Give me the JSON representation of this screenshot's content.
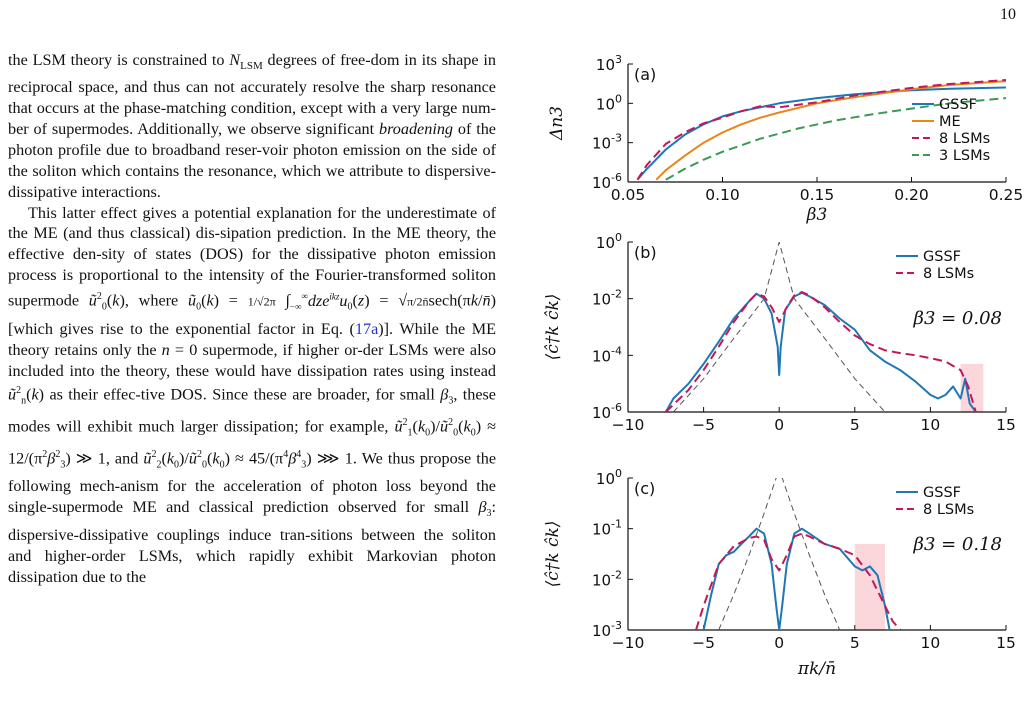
{
  "page_number": "10",
  "paragraphs": [
    "the LSM theory is constrained to N_LSM degrees of freedom in its shape in reciprocal space, and thus can not accurately resolve the sharp resonance that occurs at the phase-matching condition, except with a very large number of supermodes. Additionally, we observe significant broadening of the photon profile due to broadband reservoir photon emission on the side of the soliton which contains the resonance, which we attribute to dispersive-dissipative interactions.",
    "This latter effect gives a potential explanation for the underestimate of the ME (and thus classical) dissipation prediction. In the ME theory, the effective density of states (DOS) for the dissipative photon emission process is proportional to the intensity of the Fourier-transformed soliton supermode ũ₀²(k), where ũ₀(k) = (1/√2π)∫dz e^{ikz}u₀(z) = √(π/2n̄) sech(πk/n̄) [which gives rise to the exponential factor in Eq. (17a)]. While the ME theory retains only the n = 0 supermode, if higher order LSMs were also included into the theory, these would have dissipation rates using instead ũₙ²(k) as their effective DOS. Since these are broader, for small β₃, these modes will exhibit much larger dissipation; for example, ũ₁²(k₀)/ũ₀²(k₀) ≈ 12/(π²β₃²) ≫ 1, and ũ₂²(k₀)/ũ₀²(k₀) ≈ 45/(π⁴β₃⁴) ⋙ 1. We thus propose the following mechanism for the acceleration of photon loss beyond the single-supermode ME and classical prediction observed for small β₃: dispersive-dissipative couplings induce transitions between the soliton and higher-order LSMs, which rapidly exhibit Markovian photon dissipation due to the"
  ],
  "text": {
    "p1a": "the LSM theory is constrained to ",
    "p1b": " degrees of free-dom in its shape in reciprocal space, and thus can not accurately resolve the sharp resonance that occurs at the phase-matching condition, except with a very large num-ber of supermodes. Additionally, we observe significant ",
    "p1c": "broadening",
    "p1d": " of the photon profile due to broadband reser-voir photon emission on the side of the soliton which contains the resonance, which we attribute to dispersive-dissipative interactions.",
    "p2a": "This latter effect gives a potential explanation for the underestimate of the ME (and thus classical) dis-sipation prediction. In the ME theory, the effective den-sity of states (DOS) for the dissipative photon emission process is proportional to the intensity of the Fourier-transformed soliton supermode ",
    "p2b": ", where ",
    "p2c": " [which gives rise to the exponential factor in Eq. (",
    "p2ref": "17a",
    "p2d": ")]. While the ME theory retains only the ",
    "p2e": " supermode, if higher or-der LSMs were also included into the theory, these would have dissipation rates using instead ",
    "p2f": " as their effec-tive DOS. Since these are broader, for small ",
    "p2g": ", these modes will exhibit much larger dissipation; for example, ",
    "p2h": ", and ",
    "p2i": ". We thus propose the following mech-anism for the acceleration of photon loss beyond the single-supermode ME and classical prediction observed for small ",
    "p2j": ": dispersive-dissipative couplings induce tran-sitions between the soliton and higher-order LSMs, which rapidly exhibit Markovian photon dissipation due to the"
  },
  "colors": {
    "gssf": "#1f77b4",
    "me": "#e8851c",
    "lsm8": "#c2185b",
    "lsm3": "#3a9a55",
    "envelope": "#555555",
    "highlight": "#f9c9cf",
    "link": "#2233cc"
  },
  "chart_data": [
    {
      "panel": "(a)",
      "type": "line",
      "xlabel": "β3",
      "ylabel": "Δn3",
      "xlim": [
        0.05,
        0.25
      ],
      "xticks": [
        "0.05",
        "0.10",
        "0.15",
        "0.20",
        "0.25"
      ],
      "yscale": "log",
      "ylim": [
        1e-06,
        1000.0
      ],
      "yticks": [
        "10^-6",
        "10^-3",
        "10^0",
        "10^3"
      ],
      "legend_position": "bottom-right",
      "series": [
        {
          "name": "GSSF",
          "style": "solid",
          "x": [
            0.055,
            0.06,
            0.07,
            0.08,
            0.09,
            0.1,
            0.11,
            0.12,
            0.13,
            0.15,
            0.17,
            0.2,
            0.22,
            0.25
          ],
          "y": [
            1.5e-06,
            1e-05,
            0.0003,
            0.004,
            0.025,
            0.1,
            0.25,
            0.5,
            1.0,
            2.5,
            5,
            10,
            13,
            16
          ]
        },
        {
          "name": "ME",
          "style": "solid",
          "x": [
            0.065,
            0.07,
            0.08,
            0.09,
            0.1,
            0.11,
            0.12,
            0.13,
            0.15,
            0.17,
            0.2,
            0.22,
            0.25
          ],
          "y": [
            1.5e-06,
            8e-06,
            0.0001,
            0.001,
            0.006,
            0.025,
            0.08,
            0.2,
            1,
            3,
            12,
            25,
            50
          ]
        },
        {
          "name": "8 LSMs",
          "style": "dashed",
          "x": [
            0.055,
            0.06,
            0.07,
            0.08,
            0.09,
            0.1,
            0.11,
            0.12,
            0.13,
            0.15,
            0.17,
            0.2,
            0.22,
            0.25
          ],
          "y": [
            1.5e-06,
            2e-05,
            0.0008,
            0.006,
            0.03,
            0.08,
            0.25,
            0.6,
            0.5,
            1.2,
            4,
            15,
            30,
            60
          ]
        },
        {
          "name": "3 LSMs",
          "style": "dashed",
          "x": [
            0.07,
            0.08,
            0.09,
            0.1,
            0.12,
            0.14,
            0.16,
            0.18,
            0.2,
            0.22,
            0.25
          ],
          "y": [
            1.5e-06,
            1e-05,
            5e-05,
            0.0002,
            0.002,
            0.012,
            0.05,
            0.15,
            0.4,
            1,
            2.5
          ]
        }
      ]
    },
    {
      "panel": "(b)",
      "type": "line",
      "xlabel": "",
      "ylabel": "⟨ĉ†k ĉk⟩",
      "annotation": "β3 = 0.08",
      "xlim": [
        -10,
        15
      ],
      "xticks": [
        "−10",
        "−5",
        "0",
        "5",
        "10",
        "15"
      ],
      "yscale": "log",
      "ylim": [
        1e-06,
        1
      ],
      "yticks": [
        "10^-6",
        "10^-4",
        "10^-2",
        "10^0"
      ],
      "legend_position": "top-right",
      "highlight_x": [
        12,
        13.5
      ],
      "series": [
        {
          "name": "GSSF",
          "style": "solid",
          "x": [
            -7.5,
            -7,
            -6,
            -5,
            -4,
            -3,
            -2,
            -1.5,
            -1,
            -0.5,
            -0.1,
            0,
            0.1,
            0.4,
            1,
            1.5,
            2,
            3,
            4,
            5,
            6,
            7,
            8,
            9,
            10,
            10.5,
            11,
            11.5,
            12,
            12.3,
            12.6,
            13
          ],
          "y": [
            1e-06,
            3e-06,
            1e-05,
            5e-05,
            0.0003,
            0.002,
            0.008,
            0.015,
            0.01,
            0.003,
            0.0002,
            2e-05,
            0.0002,
            0.004,
            0.012,
            0.016,
            0.012,
            0.006,
            0.002,
            0.0008,
            0.00015,
            6e-05,
            3e-05,
            1.2e-05,
            4e-06,
            3e-06,
            4e-06,
            8e-06,
            3e-06,
            1.5e-05,
            2e-06,
            1e-06
          ]
        },
        {
          "name": "8 LSMs",
          "style": "dashed",
          "x": [
            -7.5,
            -6,
            -5,
            -4,
            -3,
            -2,
            -1.5,
            -1,
            -0.5,
            0,
            0.5,
            1,
            1.5,
            2,
            3,
            4,
            5,
            6,
            7,
            8,
            9,
            10,
            11,
            12,
            12.5,
            13
          ],
          "y": [
            1e-06,
            6e-06,
            3e-05,
            0.0002,
            0.0015,
            0.008,
            0.015,
            0.012,
            0.005,
            0.0015,
            0.005,
            0.013,
            0.017,
            0.013,
            0.005,
            0.0015,
            0.0005,
            0.00025,
            0.00015,
            0.00012,
            0.0001,
            8e-05,
            6e-05,
            3e-05,
            8e-06,
            1e-06
          ]
        },
        {
          "name": "",
          "style": "dashed-thin",
          "x": [
            -7,
            -5,
            -3,
            -2,
            -1,
            0,
            1,
            2,
            3,
            5,
            7
          ],
          "y": [
            1e-06,
            1.5e-05,
            0.0004,
            0.002,
            0.01,
            1,
            0.01,
            0.002,
            0.0004,
            1.5e-05,
            1e-06
          ]
        }
      ]
    },
    {
      "panel": "(c)",
      "type": "line",
      "xlabel": "πk/n̄",
      "ylabel": "⟨ĉ†k ĉk⟩",
      "annotation": "β3 = 0.18",
      "xlim": [
        -10,
        15
      ],
      "xticks": [
        "−10",
        "−5",
        "0",
        "5",
        "10",
        "15"
      ],
      "yscale": "log",
      "ylim": [
        0.001,
        1
      ],
      "yticks": [
        "10^-3",
        "10^-2",
        "10^-1",
        "10^0"
      ],
      "legend_position": "top-right",
      "highlight_x": [
        5,
        7
      ],
      "series": [
        {
          "name": "GSSF",
          "style": "solid",
          "x": [
            -5,
            -4.5,
            -4,
            -3.5,
            -3,
            -2.5,
            -2,
            -1.5,
            -1,
            -0.5,
            -0.2,
            0,
            0.2,
            0.5,
            1,
            1.5,
            2,
            3,
            4,
            5,
            5.5,
            6,
            6.5,
            7,
            7.3
          ],
          "y": [
            0.001,
            0.005,
            0.02,
            0.03,
            0.035,
            0.05,
            0.07,
            0.1,
            0.08,
            0.02,
            0.003,
            0.001,
            0.003,
            0.02,
            0.08,
            0.1,
            0.08,
            0.05,
            0.04,
            0.018,
            0.015,
            0.018,
            0.012,
            0.003,
            0.001
          ]
        },
        {
          "name": "8 LSMs",
          "style": "dashed",
          "x": [
            -5.5,
            -5,
            -4,
            -3,
            -2,
            -1.5,
            -1,
            -0.5,
            0,
            0.5,
            1,
            1.5,
            2,
            3,
            4,
            5,
            6,
            7,
            7.5,
            8
          ],
          "y": [
            0.001,
            0.003,
            0.02,
            0.045,
            0.065,
            0.07,
            0.06,
            0.025,
            0.015,
            0.03,
            0.07,
            0.08,
            0.07,
            0.05,
            0.04,
            0.03,
            0.012,
            0.003,
            0.0015,
            0.001
          ]
        },
        {
          "name": "",
          "style": "dashed-thin",
          "x": [
            -4,
            -3,
            -2,
            -1,
            0,
            1,
            2,
            3,
            4
          ],
          "y": [
            0.001,
            0.005,
            0.03,
            0.2,
            1.5,
            0.2,
            0.03,
            0.005,
            0.001
          ]
        }
      ]
    }
  ]
}
